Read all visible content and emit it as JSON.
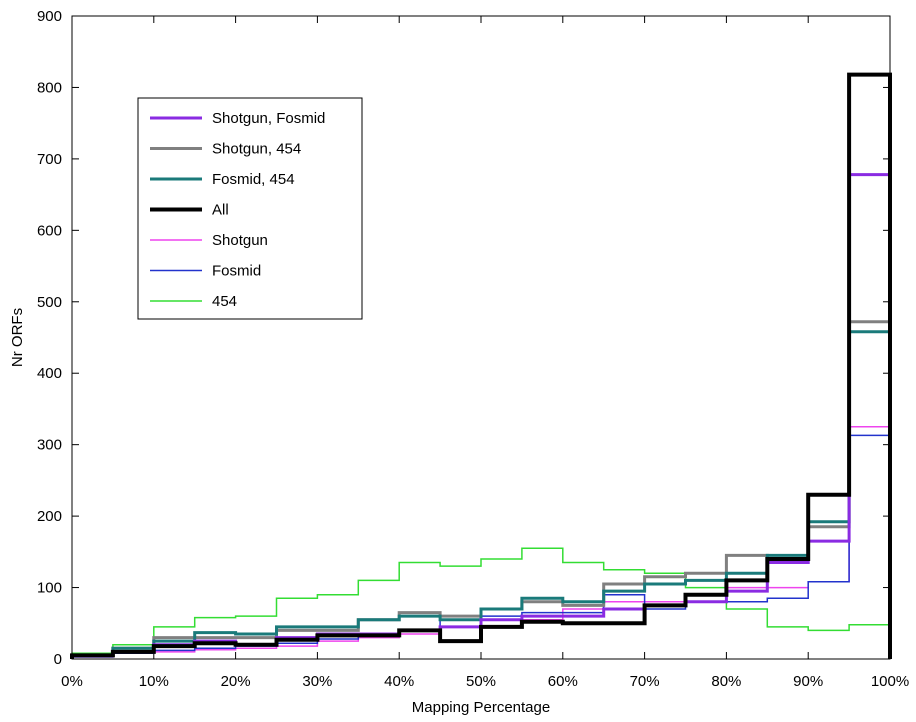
{
  "chart_data": {
    "type": "line",
    "step": "histogram",
    "xlabel": "Mapping Percentage",
    "ylabel": "Nr ORFs",
    "xlim": [
      0,
      100
    ],
    "ylim": [
      0,
      900
    ],
    "x_ticks": [
      "0%",
      "10%",
      "20%",
      "30%",
      "40%",
      "50%",
      "60%",
      "70%",
      "80%",
      "90%",
      "100%"
    ],
    "y_ticks": [
      "0",
      "100",
      "200",
      "300",
      "400",
      "500",
      "600",
      "700",
      "800",
      "900"
    ],
    "bin_edges": [
      0,
      5,
      10,
      15,
      20,
      25,
      30,
      35,
      40,
      45,
      50,
      55,
      60,
      65,
      70,
      75,
      80,
      85,
      90,
      95,
      100
    ],
    "legend_position": "upper-left",
    "series": [
      {
        "name": "Shotgun, Fosmid",
        "color": "#8a2be2",
        "width": 3,
        "values": [
          5,
          10,
          20,
          25,
          20,
          30,
          35,
          35,
          40,
          45,
          55,
          60,
          60,
          70,
          75,
          80,
          95,
          135,
          165,
          678
        ]
      },
      {
        "name": "Shotgun, 454",
        "color": "#808080",
        "width": 3,
        "values": [
          5,
          15,
          30,
          30,
          30,
          40,
          40,
          55,
          65,
          60,
          70,
          80,
          75,
          105,
          115,
          120,
          145,
          140,
          185,
          472
        ]
      },
      {
        "name": "Fosmid, 454",
        "color": "#1a7a7a",
        "width": 3,
        "values": [
          5,
          15,
          25,
          37,
          35,
          45,
          45,
          55,
          60,
          55,
          70,
          85,
          80,
          95,
          105,
          110,
          120,
          145,
          192,
          458
        ]
      },
      {
        "name": "All",
        "color": "#000000",
        "width": 4,
        "values": [
          5,
          10,
          18,
          22,
          20,
          27,
          33,
          33,
          40,
          25,
          45,
          52,
          50,
          50,
          75,
          90,
          110,
          140,
          230,
          818
        ]
      },
      {
        "name": "Shotgun",
        "color": "#ee44ee",
        "width": 1.5,
        "values": [
          3,
          8,
          10,
          13,
          15,
          18,
          25,
          30,
          35,
          45,
          55,
          55,
          70,
          80,
          80,
          90,
          100,
          100,
          108,
          325
        ]
      },
      {
        "name": "Fosmid",
        "color": "#2233cc",
        "width": 1.5,
        "values": [
          3,
          8,
          12,
          15,
          18,
          22,
          28,
          35,
          40,
          55,
          60,
          65,
          65,
          90,
          70,
          80,
          80,
          85,
          108,
          313
        ]
      },
      {
        "name": "454",
        "color": "#33dd33",
        "width": 1.5,
        "values": [
          8,
          20,
          45,
          58,
          60,
          85,
          90,
          110,
          135,
          130,
          140,
          155,
          135,
          125,
          120,
          100,
          70,
          45,
          40,
          48
        ]
      }
    ]
  }
}
